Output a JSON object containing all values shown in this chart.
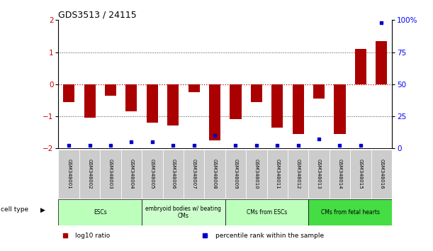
{
  "title": "GDS3513 / 24115",
  "samples": [
    "GSM348001",
    "GSM348002",
    "GSM348003",
    "GSM348004",
    "GSM348005",
    "GSM348006",
    "GSM348007",
    "GSM348008",
    "GSM348009",
    "GSM348010",
    "GSM348011",
    "GSM348012",
    "GSM348013",
    "GSM348014",
    "GSM348015",
    "GSM348016"
  ],
  "log10_ratio": [
    -0.55,
    -1.05,
    -0.35,
    -0.85,
    -1.2,
    -1.3,
    -0.25,
    -1.75,
    -1.1,
    -0.55,
    -1.35,
    -1.55,
    -0.45,
    -1.55,
    1.1,
    1.35
  ],
  "percentile_rank": [
    2,
    2,
    2,
    5,
    5,
    2,
    2,
    10,
    2,
    2,
    2,
    2,
    7,
    2,
    2,
    98
  ],
  "cell_types": [
    {
      "label": "ESCs",
      "start": 0,
      "end": 4,
      "color": "#bbffbb"
    },
    {
      "label": "embryoid bodies w/ beating\nCMs",
      "start": 4,
      "end": 8,
      "color": "#ccffcc"
    },
    {
      "label": "CMs from ESCs",
      "start": 8,
      "end": 12,
      "color": "#bbffbb"
    },
    {
      "label": "CMs from fetal hearts",
      "start": 12,
      "end": 16,
      "color": "#44dd44"
    }
  ],
  "ylim_left": [
    -2,
    2
  ],
  "ylim_right": [
    0,
    100
  ],
  "yticks_left": [
    -2,
    -1,
    0,
    1,
    2
  ],
  "yticks_right": [
    0,
    25,
    50,
    75,
    100
  ],
  "ytick_labels_right": [
    "0",
    "25",
    "50",
    "75",
    "100%"
  ],
  "bar_color": "#aa0000",
  "dot_color": "#0000cc",
  "sample_box_color": "#cccccc",
  "background_color": "#ffffff",
  "legend_items": [
    {
      "label": "log10 ratio",
      "color": "#aa0000"
    },
    {
      "label": "percentile rank within the sample",
      "color": "#0000cc"
    }
  ]
}
